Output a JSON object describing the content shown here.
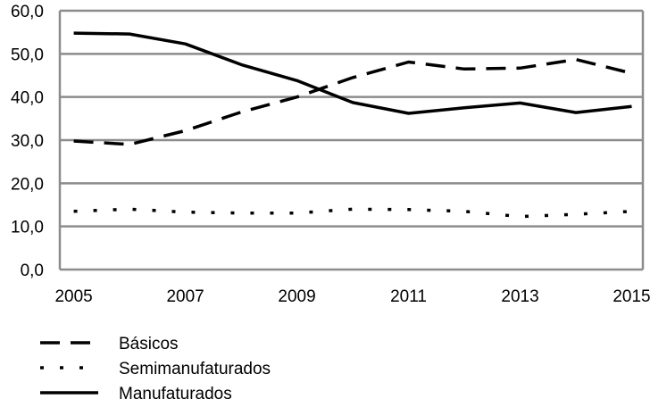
{
  "chart_data": {
    "type": "line",
    "x": [
      2005,
      2006,
      2007,
      2008,
      2009,
      2010,
      2011,
      2012,
      2013,
      2014,
      2015
    ],
    "x_tick_labels": [
      "2005",
      "2007",
      "2009",
      "2011",
      "2013",
      "2015"
    ],
    "y_tick_labels": [
      "0,0",
      "10,0",
      "20,0",
      "30,0",
      "40,0",
      "50,0",
      "60,0"
    ],
    "ylim": [
      0,
      60
    ],
    "xlim": [
      2005,
      2015
    ],
    "grid": "horizontal",
    "legend_position": "bottom-left",
    "series": [
      {
        "name": "Básicos",
        "line_style": "dashed",
        "color": "#000000",
        "values": [
          29.8,
          29.0,
          32.2,
          36.5,
          40.0,
          44.5,
          48.1,
          46.5,
          46.7,
          48.7,
          45.5
        ]
      },
      {
        "name": "Semimanufaturados",
        "line_style": "dotted",
        "color": "#000000",
        "values": [
          13.5,
          14.0,
          13.3,
          13.1,
          13.1,
          14.0,
          13.9,
          13.5,
          12.3,
          12.8,
          13.5
        ]
      },
      {
        "name": "Manufaturados",
        "line_style": "solid",
        "color": "#000000",
        "values": [
          54.8,
          54.6,
          52.3,
          47.5,
          43.8,
          38.7,
          36.2,
          37.5,
          38.6,
          36.4,
          37.8
        ]
      }
    ]
  }
}
